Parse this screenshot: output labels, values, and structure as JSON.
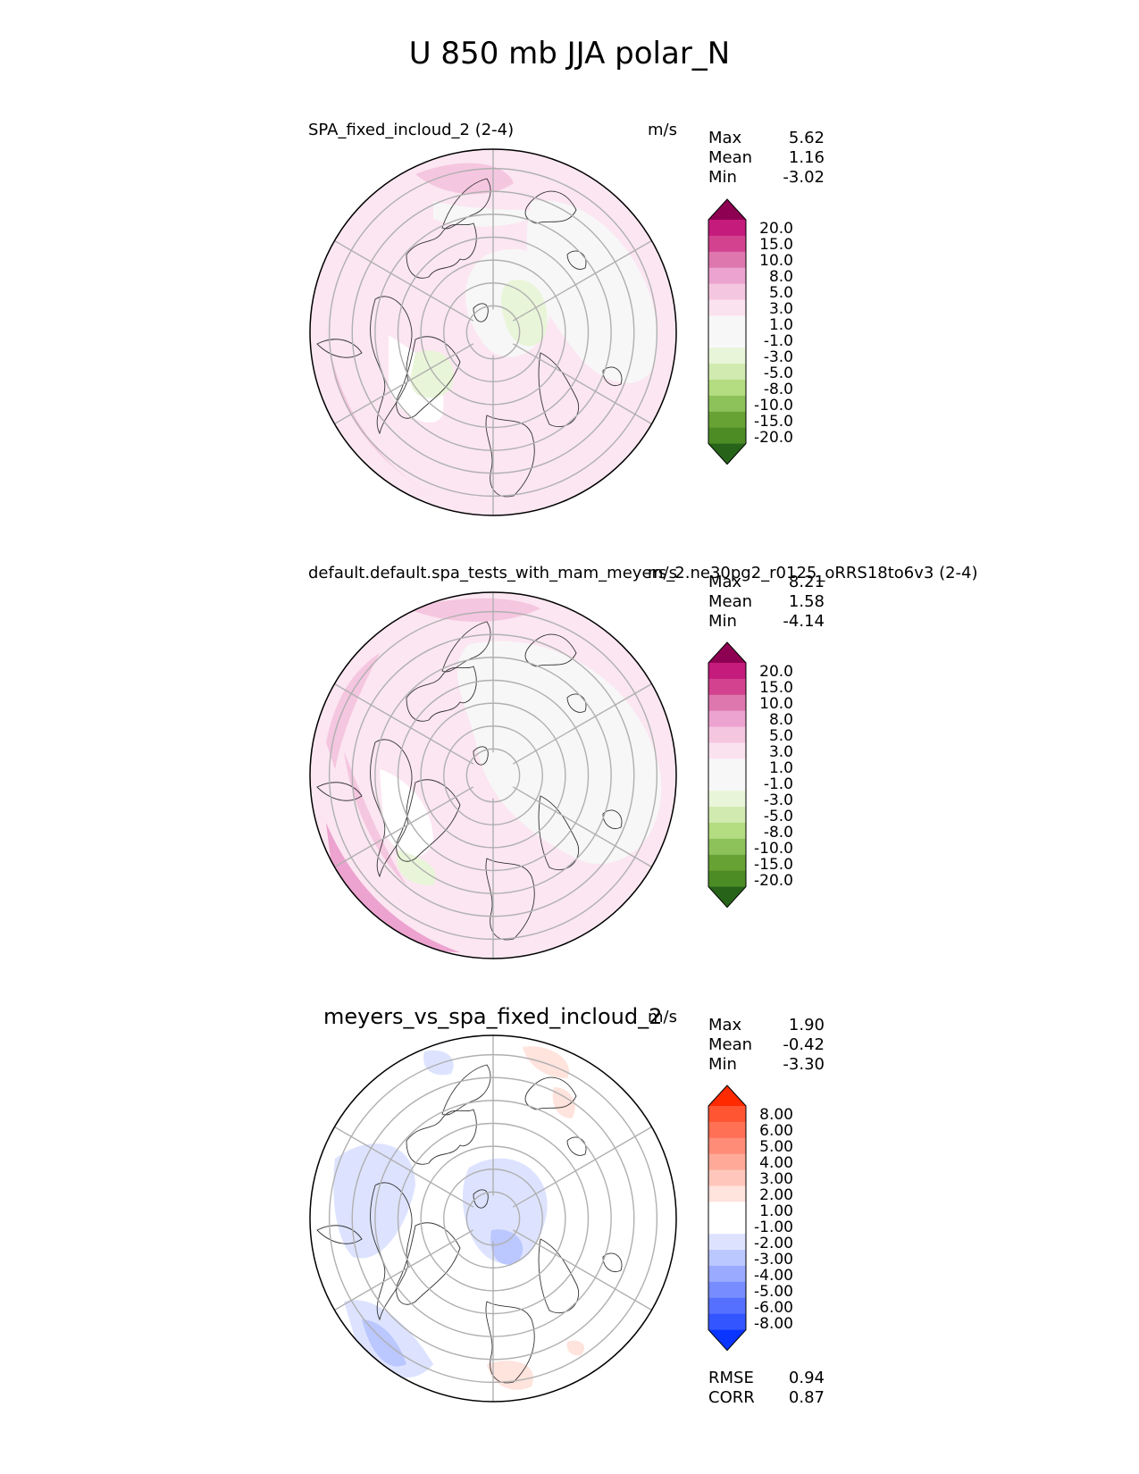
{
  "figure_title": "U 850 mb JJA polar_N",
  "panels": [
    {
      "title": "SPA_fixed_incloud_2 (2-4)",
      "units": "m/s",
      "stats": {
        "max_label": "Max",
        "max": "5.62",
        "mean_label": "Mean",
        "mean": "1.16",
        "min_label": "Min",
        "min": "-3.02"
      },
      "colorbar": {
        "ticks": [
          "20.0",
          "15.0",
          "10.0",
          "8.0",
          "5.0",
          "3.0",
          "1.0",
          "-1.0",
          "-3.0",
          "-5.0",
          "-8.0",
          "-10.0",
          "-15.0",
          "-20.0"
        ],
        "colors": [
          "#8e0152",
          "#c51b7d",
          "#d3428f",
          "#de77ae",
          "#eca3cf",
          "#f5c6e0",
          "#fbe2ef",
          "#f7f7f7",
          "#f7f7f7",
          "#e9f5d8",
          "#d1eaaf",
          "#b3dd80",
          "#8dc25b",
          "#67a235",
          "#4d8c25",
          "#276419"
        ]
      }
    },
    {
      "title": "default.default.spa_tests_with_mam_meyers_2.ne30pg2_r0125_oRRS18to6v3 (2-4)",
      "units": "m/s",
      "stats": {
        "max_label": "Max",
        "max": "8.21",
        "mean_label": "Mean",
        "mean": "1.58",
        "min_label": "Min",
        "min": "-4.14"
      },
      "colorbar": {
        "ticks": [
          "20.0",
          "15.0",
          "10.0",
          "8.0",
          "5.0",
          "3.0",
          "1.0",
          "-1.0",
          "-3.0",
          "-5.0",
          "-8.0",
          "-10.0",
          "-15.0",
          "-20.0"
        ],
        "colors": [
          "#8e0152",
          "#c51b7d",
          "#d3428f",
          "#de77ae",
          "#eca3cf",
          "#f5c6e0",
          "#fbe2ef",
          "#f7f7f7",
          "#f7f7f7",
          "#e9f5d8",
          "#d1eaaf",
          "#b3dd80",
          "#8dc25b",
          "#67a235",
          "#4d8c25",
          "#276419"
        ]
      }
    },
    {
      "title": "meyers_vs_spa_fixed_incloud_2",
      "units": "m/s",
      "stats": {
        "max_label": "Max",
        "max": "1.90",
        "mean_label": "Mean",
        "mean": "-0.42",
        "min_label": "Min",
        "min": "-3.30"
      },
      "colorbar": {
        "ticks": [
          "8.00",
          "6.00",
          "5.00",
          "4.00",
          "3.00",
          "2.00",
          "1.00",
          "-1.00",
          "-2.00",
          "-3.00",
          "-4.00",
          "-5.00",
          "-6.00",
          "-8.00"
        ],
        "colors": [
          "#ff2a00",
          "#ff5533",
          "#ff7055",
          "#ff8c77",
          "#ffaa99",
          "#ffc7bb",
          "#ffe3dd",
          "#ffffff",
          "#ffffff",
          "#dde3ff",
          "#bbc7ff",
          "#99aaff",
          "#778cff",
          "#5570ff",
          "#3355ff",
          "#0a34ff"
        ]
      },
      "metrics": {
        "rmse_label": "RMSE",
        "rmse": "0.94",
        "corr_label": "CORR",
        "corr": "0.87"
      }
    }
  ]
}
